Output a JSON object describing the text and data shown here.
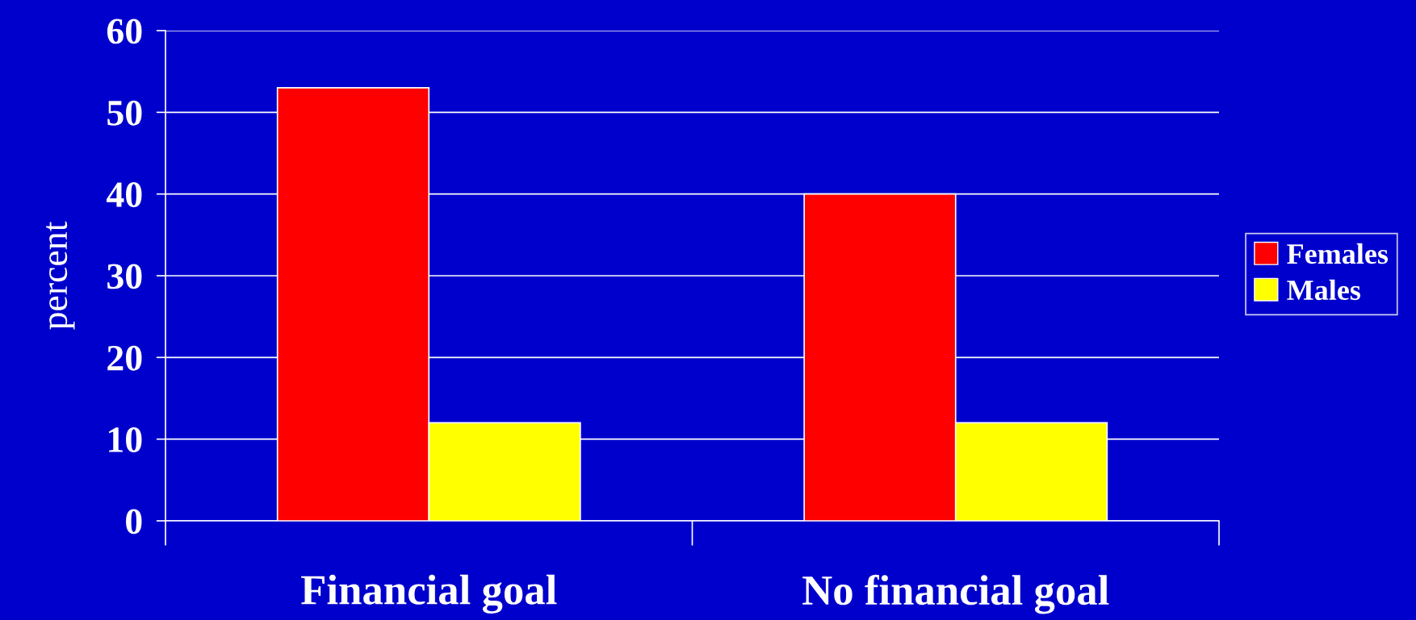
{
  "chart_data": {
    "type": "bar",
    "ylabel": "percent",
    "categories": [
      "Financial goal",
      "No financial goal"
    ],
    "series": [
      {
        "name": "Females",
        "color": "#ff0000",
        "values": [
          53,
          40
        ]
      },
      {
        "name": "Males",
        "color": "#ffff00",
        "values": [
          12,
          12
        ]
      }
    ],
    "ylim": [
      0,
      60
    ],
    "yticks": [
      0,
      10,
      20,
      30,
      40,
      50,
      60
    ],
    "grid": "y",
    "legend": "right"
  }
}
